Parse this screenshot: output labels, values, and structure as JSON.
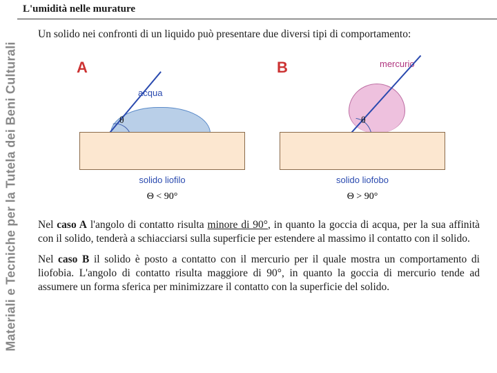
{
  "header": {
    "title": "L'umidità nelle murature"
  },
  "sidebar": {
    "text": "Materiali e Tecniche per la Tutela dei Beni Culturali"
  },
  "intro": "Un solido nei confronti di un liquido può presentare due diversi tipi di comportamento:",
  "diagram": {
    "background_color": "#ffffff",
    "A": {
      "letter": "A",
      "letter_color": "#cc3333",
      "liquid_label": "acqua",
      "liquid_label_color": "#2a4aaf",
      "drop_fill": "#b9cfe8",
      "drop_stroke": "#5b8bc9",
      "solid_fill": "#fce7d0",
      "solid_stroke": "#8a6a4a",
      "solid_label": "solido liofilo",
      "theta_text": "Θ < 90°",
      "theta_mark": "θ"
    },
    "B": {
      "letter": "B",
      "letter_color": "#cc3333",
      "liquid_label": "mercurio",
      "liquid_label_color": "#b0357f",
      "drop_fill": "#eec1de",
      "drop_stroke": "#bb6aa0",
      "solid_fill": "#fce7d0",
      "solid_stroke": "#8a6a4a",
      "solid_label": "solido liofobo",
      "theta_text": "Θ > 90°",
      "theta_mark": "θ"
    }
  },
  "paraA": {
    "lead": "Nel ",
    "caso": "caso A",
    "mid1": " l'angolo di contatto risulta ",
    "underline": "minore di 90°",
    "rest": ", in quanto la goccia di acqua, per la sua affinità con il solido, tenderà a schiacciarsi sulla superficie per estendere al massimo il contatto con il solido."
  },
  "paraB": {
    "lead": "Nel ",
    "caso": "caso B",
    "rest": " il solido è posto a contatto con il mercurio per il quale mostra un comportamento di liofobia. L'angolo di contatto risulta maggiore di 90°, in quanto la goccia di mercurio tende ad assumere un forma sferica per minimizzare il contatto con la superficie del solido."
  }
}
